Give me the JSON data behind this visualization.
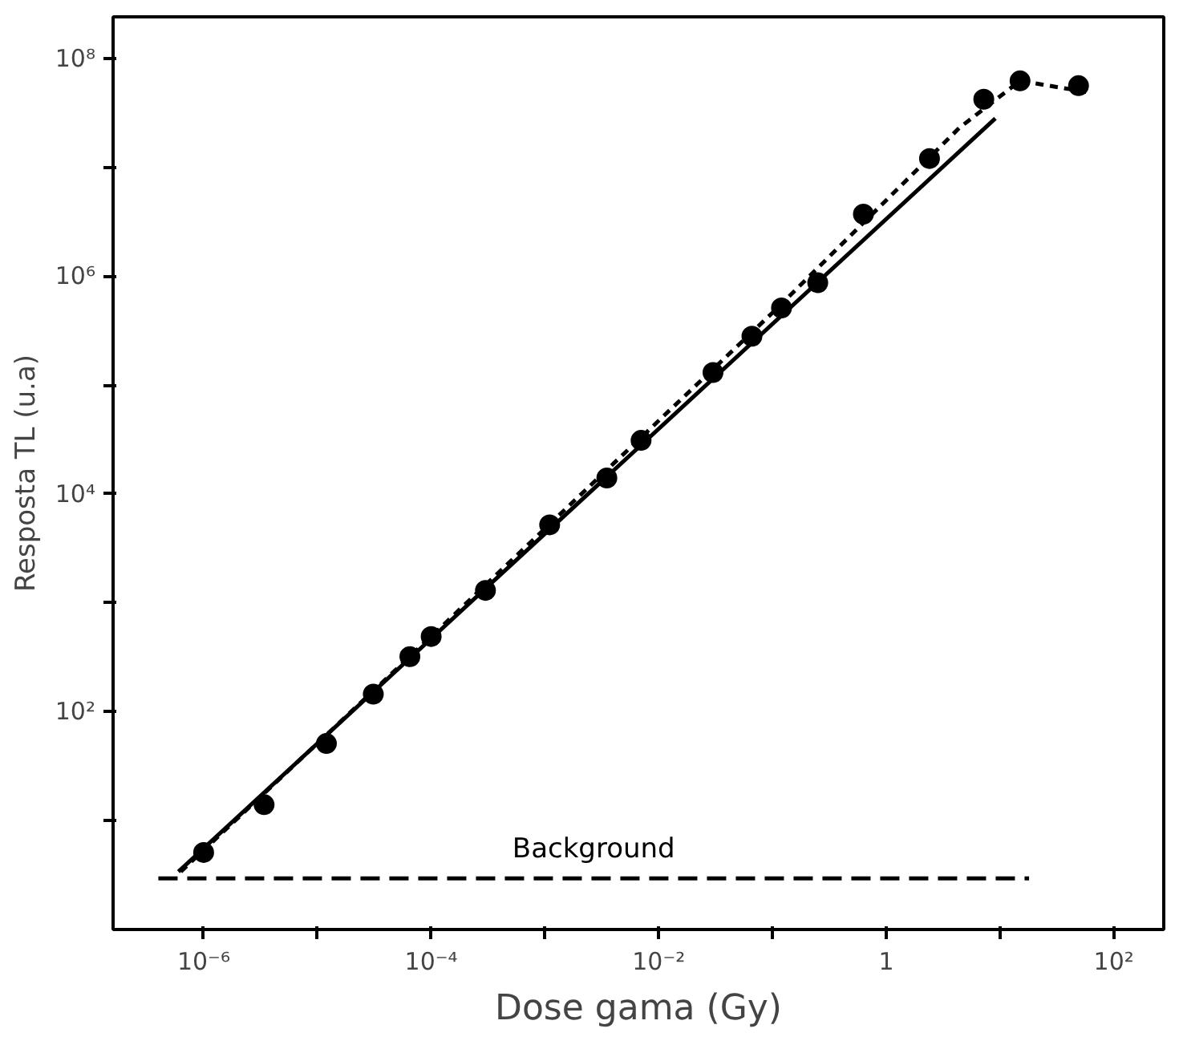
{
  "chart_data": {
    "type": "scatter",
    "xlabel": "Dose gama (Gy)",
    "ylabel": "Resposta TL (u.a)",
    "log": "xy",
    "grid": false,
    "marker": "circle",
    "xlim": [
      1.6e-07,
      275
    ],
    "ylim": [
      1,
      240000000.0
    ],
    "xticks": [
      {
        "value": 1e-06,
        "label": "10⁻⁶"
      },
      {
        "value": 1e-05,
        "label": null
      },
      {
        "value": 0.0001,
        "label": "10⁻⁴"
      },
      {
        "value": 0.001,
        "label": null
      },
      {
        "value": 0.01,
        "label": "10⁻²"
      },
      {
        "value": 0.1,
        "label": null
      },
      1,
      {
        "value": 10,
        "label": null
      },
      {
        "value": 100,
        "label": "10²"
      }
    ],
    "yticks": [
      {
        "value": 10,
        "label": null
      },
      {
        "value": 100,
        "label": "10²"
      },
      {
        "value": 1000,
        "label": null
      },
      {
        "value": 10000,
        "label": "10⁴"
      },
      {
        "value": 100000,
        "label": null
      },
      {
        "value": 1000000,
        "label": "10⁶"
      },
      {
        "value": 10000000,
        "label": null
      },
      {
        "value": 100000000,
        "label": "10⁸"
      }
    ],
    "series": [
      {
        "color": "#000000",
        "x": [
          1e-06,
          3.4e-06,
          1.2e-05,
          3.1e-05,
          6.5e-05,
          0.0001,
          0.0003,
          0.0011,
          0.0035,
          0.007,
          0.03,
          0.066,
          0.12,
          0.25,
          0.63,
          2.4,
          7.2,
          15,
          49
        ],
        "values": [
          5.1,
          14,
          51,
          145,
          320,
          490,
          1300,
          5200,
          14000,
          31000,
          130000,
          280000,
          510000,
          870000,
          3700000,
          12000000,
          42000000,
          62000000,
          56000000
        ]
      },
      {
        "type": "line",
        "color": "#000000",
        "line_style": "solid",
        "marker": "none",
        "x": [
          6e-07,
          9.1
        ],
        "values": [
          3.4,
          28000000
        ]
      },
      {
        "type": "line",
        "color": "#000000",
        "line_style": "dotted",
        "marker": "none",
        "x": [
          6.3e-07,
          0.0001,
          0.1,
          4.4,
          15,
          65
        ],
        "values": [
          3.4,
          490,
          460000,
          23000000,
          62000000,
          48000000
        ]
      },
      {
        "type": "line",
        "name": "Background",
        "color": "#000000",
        "line_style": "dashed",
        "marker": "none",
        "x": [
          4e-07,
          18
        ],
        "values": [
          2.95,
          2.95
        ]
      }
    ]
  }
}
